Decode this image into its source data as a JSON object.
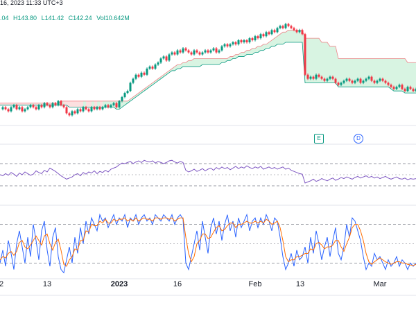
{
  "header": {
    "date_text": "16, 2023 11:33 UTC+3",
    "ohlc": [
      {
        "key": "o",
        "text": ".04"
      },
      {
        "key": "h",
        "text": "H143.80"
      },
      {
        "key": "l",
        "text": "L141.42"
      },
      {
        "key": "c",
        "text": "C142.24"
      },
      {
        "key": "vol",
        "text": "Vol10.642M"
      }
    ]
  },
  "markers": {
    "earnings": "E",
    "dividend": "D"
  },
  "colors": {
    "up": "#089981",
    "down": "#f23645",
    "rsi": "#7e57c2",
    "stoch_k": "#2962ff",
    "stoch_d": "#ff6d00",
    "band_up_fill": "#c8f0d6",
    "band_down_fill": "#fbd3d3",
    "grid_dash": "#787b86"
  },
  "x_axis": {
    "labels": [
      "2",
      "13",
      "2023",
      "16",
      "Feb",
      "13",
      "Mar"
    ]
  },
  "chart_data": [
    {
      "type": "line",
      "panel": "price",
      "description": "candlestick with trend band",
      "x": [
        0,
        4,
        8,
        12,
        16,
        20,
        24,
        28,
        32,
        36,
        40,
        44,
        48,
        52,
        56,
        60,
        64,
        68,
        72,
        76,
        80,
        84,
        88,
        92,
        96,
        100,
        104,
        108,
        112,
        116,
        120,
        124,
        128,
        132,
        136,
        140,
        144,
        148,
        152,
        156,
        160,
        164,
        168,
        172,
        176,
        180,
        184,
        188,
        192,
        196,
        200,
        204,
        208,
        212,
        216,
        220,
        224,
        228,
        232,
        236,
        240,
        244,
        248,
        252,
        256,
        260,
        264,
        268,
        272,
        276,
        280,
        284,
        288,
        292,
        296,
        300,
        304,
        308,
        312,
        316,
        320,
        324,
        328,
        332,
        336,
        340,
        344,
        348,
        352,
        356,
        360,
        364,
        368,
        372,
        376,
        380,
        384,
        388,
        392,
        396,
        400,
        404,
        408,
        412,
        416,
        420,
        424,
        428,
        432,
        436,
        440,
        444,
        448,
        452,
        456,
        460,
        464,
        468,
        472,
        476,
        480,
        484,
        488,
        492,
        496,
        500,
        504,
        508,
        512,
        516,
        520,
        524,
        528,
        532,
        536,
        540,
        544,
        548,
        552,
        556,
        560,
        564,
        568,
        572,
        576,
        580,
        584,
        588,
        592,
        596,
        600
      ],
      "close": [
        135,
        136,
        135,
        134,
        136,
        137,
        135,
        136,
        134,
        135,
        136,
        137,
        136,
        135,
        137,
        136,
        138,
        137,
        136,
        138,
        137,
        139,
        137,
        136,
        133,
        132,
        134,
        133,
        135,
        134,
        136,
        135,
        134,
        136,
        135,
        136,
        135,
        136,
        137,
        136,
        137,
        138,
        136,
        139,
        141,
        143,
        144,
        148,
        150,
        152,
        151,
        153,
        152,
        155,
        156,
        155,
        157,
        158,
        160,
        161,
        159,
        162,
        163,
        162,
        164,
        163,
        165,
        164,
        163,
        162,
        164,
        163,
        162,
        163,
        164,
        163,
        164,
        165,
        163,
        164,
        166,
        167,
        166,
        167,
        168,
        167,
        169,
        168,
        169,
        168,
        170,
        169,
        171,
        170,
        172,
        171,
        173,
        172,
        174,
        173,
        175,
        176,
        175,
        177,
        176,
        175,
        174,
        173,
        174,
        172,
        152,
        150,
        151,
        150,
        152,
        151,
        150,
        149,
        150,
        151,
        150,
        148,
        147,
        148,
        149,
        150,
        149,
        148,
        149,
        150,
        148,
        149,
        150,
        151,
        149,
        148,
        149,
        150,
        149,
        148,
        147,
        146,
        145,
        146,
        147,
        145,
        144,
        146,
        145,
        144,
        145
      ],
      "band_lo": [
        137,
        137,
        137,
        137,
        137,
        137,
        137,
        137,
        137,
        137,
        137,
        137,
        137,
        137,
        137,
        137,
        137,
        137,
        137,
        137,
        137,
        137,
        137,
        137,
        137,
        136,
        136,
        136,
        136,
        136,
        136,
        136,
        136,
        136,
        136,
        136,
        136,
        136,
        136,
        136,
        136,
        136,
        135,
        135,
        136,
        137,
        138,
        139,
        140,
        141,
        142,
        143,
        144,
        145,
        146,
        147,
        148,
        149,
        150,
        151,
        152,
        153,
        154,
        154,
        155,
        155,
        156,
        156,
        156,
        156,
        156,
        156,
        156,
        157,
        157,
        157,
        157,
        157,
        157,
        157,
        158,
        158,
        159,
        159,
        160,
        160,
        161,
        161,
        161,
        162,
        162,
        162,
        163,
        163,
        164,
        164,
        165,
        165,
        166,
        166,
        167,
        167,
        167,
        168,
        168,
        168,
        168,
        168,
        168,
        168,
        148,
        148,
        148,
        148,
        148,
        148,
        148,
        148,
        148,
        148,
        148,
        148,
        146,
        146,
        146,
        146,
        146,
        146,
        146,
        146,
        146,
        146,
        146,
        146,
        146,
        146,
        146,
        146,
        146,
        146,
        146,
        145,
        144,
        144,
        144,
        144,
        143,
        143,
        143,
        143,
        143
      ],
      "band_hi": [
        138,
        138,
        138,
        138,
        138,
        138,
        138,
        138,
        138,
        138,
        138,
        138,
        138,
        138,
        138,
        138,
        138,
        138,
        138,
        138,
        138,
        138,
        139,
        139,
        139,
        139,
        139,
        139,
        139,
        139,
        139,
        139,
        139,
        139,
        139,
        139,
        139,
        139,
        139,
        139,
        139,
        139,
        139,
        139,
        139,
        139,
        139,
        140,
        141,
        142,
        143,
        144,
        145,
        146,
        147,
        148,
        149,
        150,
        151,
        152,
        153,
        154,
        155,
        156,
        157,
        157,
        158,
        158,
        159,
        159,
        160,
        160,
        160,
        160,
        160,
        160,
        160,
        160,
        160,
        160,
        160,
        160,
        160,
        161,
        161,
        162,
        162,
        163,
        163,
        164,
        164,
        165,
        165,
        166,
        166,
        167,
        167,
        168,
        169,
        170,
        171,
        172,
        173,
        173,
        174,
        174,
        174,
        174,
        174,
        174,
        170,
        170,
        170,
        170,
        170,
        170,
        168,
        168,
        168,
        166,
        166,
        166,
        160,
        160,
        160,
        160,
        160,
        160,
        160,
        160,
        160,
        160,
        160,
        160,
        160,
        160,
        160,
        160,
        160,
        160,
        160,
        160,
        160,
        160,
        160,
        160,
        160,
        158,
        158,
        158,
        158
      ]
    },
    {
      "type": "line",
      "panel": "rsi",
      "ylim": [
        0,
        100
      ],
      "levels": [
        70,
        30
      ],
      "series": [
        {
          "values": [
            50,
            48,
            52,
            49,
            54,
            51,
            47,
            53,
            50,
            55,
            52,
            49,
            51,
            57,
            54,
            52,
            58,
            55,
            62,
            59,
            56,
            52,
            48,
            45,
            42,
            44,
            46,
            50,
            52,
            48,
            54,
            51,
            55,
            53,
            57,
            52,
            56,
            54,
            58,
            55,
            60,
            62,
            64,
            68,
            71,
            70,
            72,
            74,
            70,
            73,
            75,
            72,
            76,
            74,
            73,
            75,
            71,
            74,
            72,
            70,
            72,
            75,
            76,
            73,
            71,
            74,
            72,
            58,
            55,
            57,
            60,
            56,
            58,
            61,
            57,
            60,
            62,
            58,
            63,
            60,
            64,
            61,
            63,
            59,
            62,
            65,
            61,
            64,
            62,
            66,
            63,
            61,
            64,
            62,
            65,
            60,
            62,
            64,
            61,
            63,
            60,
            62,
            64,
            60,
            62,
            58,
            56,
            54,
            52,
            51,
            35,
            37,
            39,
            42,
            38,
            40,
            43,
            41,
            39,
            42,
            44,
            40,
            42,
            45,
            43,
            46,
            44,
            42,
            45,
            47,
            44,
            46,
            48,
            45,
            47,
            44,
            46,
            43,
            45,
            47,
            44,
            42,
            44,
            46,
            43,
            42,
            44,
            41,
            43,
            42,
            43
          ]
        }
      ]
    },
    {
      "type": "line",
      "panel": "stochastic",
      "ylim": [
        0,
        100
      ],
      "levels": [
        80,
        20
      ],
      "series": [
        {
          "values": [
            20,
            40,
            15,
            55,
            35,
            10,
            50,
            70,
            45,
            20,
            60,
            30,
            80,
            55,
            25,
            70,
            85,
            40,
            15,
            60,
            75,
            30,
            10,
            5,
            25,
            45,
            20,
            60,
            35,
            75,
            50,
            85,
            65,
            90,
            80,
            70,
            95,
            85,
            90,
            75,
            85,
            95,
            80,
            90,
            85,
            95,
            75,
            90,
            85,
            95,
            80,
            90,
            95,
            85,
            90,
            80,
            95,
            90,
            85,
            95,
            90,
            85,
            95,
            80,
            90,
            95,
            88,
            20,
            10,
            30,
            50,
            70,
            40,
            85,
            60,
            35,
            75,
            90,
            65,
            85,
            55,
            80,
            95,
            70,
            85,
            60,
            90,
            75,
            85,
            95,
            70,
            85,
            90,
            75,
            90,
            80,
            95,
            85,
            70,
            90,
            85,
            60,
            30,
            10,
            20,
            35,
            15,
            40,
            25,
            30,
            45,
            20,
            60,
            35,
            70,
            50,
            25,
            45,
            60,
            30,
            55,
            75,
            35,
            25,
            45,
            80,
            60,
            90,
            85,
            70,
            55,
            30,
            10,
            20,
            15,
            35,
            25,
            30,
            20,
            10,
            25,
            15,
            20,
            30,
            15,
            25,
            20,
            10,
            20,
            15,
            20
          ]
        },
        {
          "values": [
            25,
            30,
            28,
            35,
            38,
            32,
            38,
            52,
            55,
            45,
            42,
            48,
            55,
            62,
            55,
            48,
            62,
            65,
            50,
            40,
            52,
            57,
            40,
            18,
            15,
            25,
            30,
            42,
            40,
            55,
            55,
            70,
            68,
            80,
            78,
            78,
            85,
            82,
            88,
            82,
            82,
            88,
            85,
            88,
            88,
            90,
            85,
            88,
            85,
            90,
            85,
            88,
            90,
            88,
            88,
            85,
            90,
            90,
            88,
            90,
            90,
            88,
            90,
            85,
            88,
            90,
            90,
            60,
            35,
            22,
            30,
            50,
            55,
            65,
            65,
            58,
            60,
            68,
            75,
            78,
            70,
            72,
            78,
            82,
            82,
            75,
            80,
            80,
            82,
            85,
            82,
            82,
            85,
            82,
            85,
            82,
            88,
            85,
            80,
            82,
            85,
            75,
            55,
            30,
            22,
            25,
            25,
            30,
            30,
            32,
            35,
            35,
            42,
            40,
            50,
            52,
            48,
            42,
            45,
            45,
            48,
            55,
            55,
            45,
            38,
            50,
            60,
            75,
            80,
            80,
            70,
            55,
            35,
            22,
            18,
            22,
            25,
            28,
            25,
            22,
            20,
            18,
            20,
            22,
            22,
            20,
            20,
            18,
            17,
            16,
            18
          ]
        }
      ]
    }
  ]
}
